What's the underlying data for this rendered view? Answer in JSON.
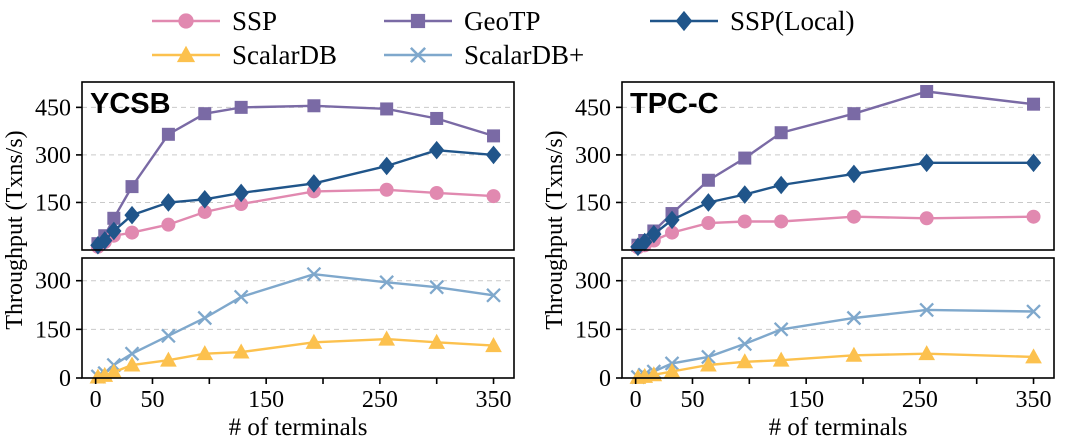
{
  "legend": {
    "entries": [
      {
        "label": "SSP",
        "series": "SSP",
        "row": 0,
        "col": 0
      },
      {
        "label": "GeoTP",
        "series": "GeoTP",
        "row": 0,
        "col": 1
      },
      {
        "label": "SSP(Local)",
        "series": "SSP(Local)",
        "row": 0,
        "col": 2
      },
      {
        "label": "ScalarDB",
        "series": "ScalarDB",
        "row": 1,
        "col": 0
      },
      {
        "label": "ScalarDB+",
        "series": "ScalarDB+",
        "row": 1,
        "col": 1
      }
    ]
  },
  "styles": {
    "SSP": {
      "color": "#e189b0",
      "marker": "circle"
    },
    "GeoTP": {
      "color": "#7a6aa5",
      "marker": "square"
    },
    "SSP(Local)": {
      "color": "#20558a",
      "marker": "diamond"
    },
    "ScalarDB": {
      "color": "#fcc14e",
      "marker": "triangle"
    },
    "ScalarDB+": {
      "color": "#7fa8cc",
      "marker": "x"
    }
  },
  "chart_data": [
    {
      "type": "line",
      "title": "YCSB",
      "xlabel": "# of terminals",
      "ylabel": "Throughput (Txns/s)",
      "xlim": [
        -12,
        368
      ],
      "x_ticks": [
        0,
        50,
        100,
        150,
        200,
        250,
        300,
        350
      ],
      "x_tick_labels": [
        0,
        50,
        150,
        250,
        350
      ],
      "x": [
        2,
        8,
        16,
        32,
        64,
        96,
        128,
        192,
        256,
        300,
        350
      ],
      "top": {
        "ylim": [
          0,
          530
        ],
        "y_ticks": [
          150,
          300,
          450
        ],
        "grid": true,
        "series": [
          {
            "name": "GeoTP",
            "values": [
              20,
              45,
              100,
              200,
              365,
              430,
              450,
              455,
              445,
              415,
              360
            ]
          },
          {
            "name": "SSP",
            "values": [
              10,
              25,
              45,
              55,
              80,
              120,
              145,
              185,
              190,
              180,
              170
            ]
          },
          {
            "name": "SSP(Local)",
            "values": [
              15,
              30,
              60,
              110,
              150,
              160,
              180,
              210,
              265,
              315,
              300
            ]
          }
        ]
      },
      "bottom": {
        "ylim": [
          0,
          370
        ],
        "y_ticks": [
          0,
          150,
          300
        ],
        "grid": true,
        "series": [
          {
            "name": "ScalarDB+",
            "values": [
              5,
              15,
              40,
              75,
              130,
              185,
              250,
              320,
              295,
              280,
              255
            ]
          },
          {
            "name": "ScalarDB",
            "values": [
              3,
              8,
              18,
              40,
              55,
              75,
              80,
              110,
              120,
              110,
              100
            ]
          }
        ]
      }
    },
    {
      "type": "line",
      "title": "TPC-C",
      "xlabel": "# of terminals",
      "ylabel": "Throughput (Txns/s)",
      "xlim": [
        -12,
        368
      ],
      "x_ticks": [
        0,
        50,
        100,
        150,
        200,
        250,
        300,
        350
      ],
      "x_tick_labels": [
        0,
        50,
        150,
        250,
        350
      ],
      "x": [
        2,
        8,
        16,
        32,
        64,
        96,
        128,
        192,
        256,
        350
      ],
      "top": {
        "ylim": [
          0,
          530
        ],
        "y_ticks": [
          150,
          300,
          450
        ],
        "grid": true,
        "series": [
          {
            "name": "GeoTP",
            "values": [
              15,
              30,
              60,
              115,
              220,
              290,
              370,
              430,
              500,
              460
            ]
          },
          {
            "name": "SSP",
            "values": [
              8,
              15,
              30,
              55,
              85,
              90,
              90,
              105,
              100,
              105
            ]
          },
          {
            "name": "SSP(Local)",
            "values": [
              10,
              25,
              50,
              95,
              150,
              175,
              205,
              240,
              275,
              275
            ]
          }
        ]
      },
      "bottom": {
        "ylim": [
          0,
          370
        ],
        "y_ticks": [
          0,
          150,
          300
        ],
        "grid": true,
        "series": [
          {
            "name": "ScalarDB+",
            "values": [
              3,
              10,
              20,
              45,
              65,
              105,
              150,
              185,
              210,
              205
            ]
          },
          {
            "name": "ScalarDB",
            "values": [
              2,
              5,
              10,
              20,
              40,
              50,
              55,
              70,
              75,
              65
            ]
          }
        ]
      }
    }
  ]
}
